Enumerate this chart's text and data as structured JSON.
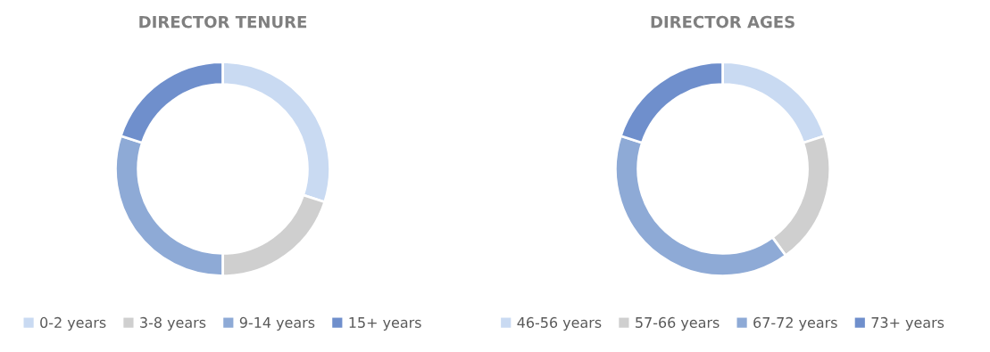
{
  "chart_data": [
    {
      "type": "donut",
      "title": "DIRECTOR TENURE",
      "categories": [
        "0-2 years",
        "3-8 years",
        "9-14 years",
        "15+ years"
      ],
      "values": [
        30,
        20,
        30,
        20
      ],
      "colors": [
        "#c9daf2",
        "#cfcfcf",
        "#8eaad6",
        "#6f8fcc"
      ],
      "legend": "bottom"
    },
    {
      "type": "donut",
      "title": "DIRECTOR AGES",
      "categories": [
        "46-56 years",
        "57-66 years",
        "67-72 years",
        "73+ years"
      ],
      "values": [
        20,
        20,
        40,
        20
      ],
      "colors": [
        "#c9daf2",
        "#cfcfcf",
        "#8eaad6",
        "#6f8fcc"
      ],
      "legend": "bottom"
    }
  ]
}
